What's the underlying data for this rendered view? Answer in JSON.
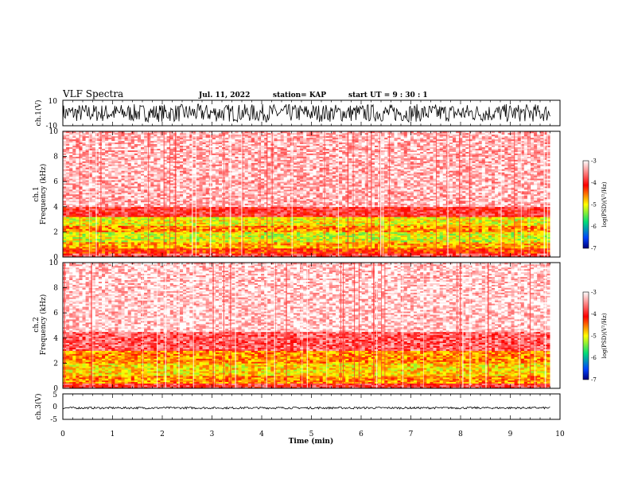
{
  "header": {
    "title": "VLF Spectra",
    "date": "Jul. 11, 2022",
    "station": "station= KAP",
    "start_ut": "start UT =  9 : 30 : 1"
  },
  "chart_data": [
    {
      "type": "line",
      "panel": "ch1-waveform",
      "ylabel": "ch.1(V)",
      "ylim": [
        -10,
        10
      ],
      "ytick_labels": [
        "10",
        "-10"
      ],
      "xlim": [
        0,
        10
      ],
      "description_level": {
        "center": 0,
        "amplitude": 7
      }
    },
    {
      "type": "heatmap",
      "panel": "ch1-spectrogram",
      "ylabel_top": "ch.1",
      "ylabel": "Frequency (kHz)",
      "ylim": [
        0,
        10
      ],
      "ytick_labels": [
        "0",
        "2",
        "4",
        "6",
        "8",
        "10"
      ],
      "xlim": [
        0,
        10
      ],
      "colorbar": {
        "label": "log(PSD)(V²/Hz)",
        "range": [
          -7,
          -3
        ],
        "tick_labels": [
          "-3",
          "-4",
          "-5",
          "-6",
          "-7"
        ],
        "colors": [
          "#00007a",
          "#0044ff",
          "#00dd77",
          "#ffff00",
          "#ff0000",
          "#ffffff"
        ]
      },
      "band_levels": [
        {
          "fmin": 0,
          "fmax": 0.3,
          "level": -3.8
        },
        {
          "fmin": 0.3,
          "fmax": 0.7,
          "level": -4.3
        },
        {
          "fmin": 0.7,
          "fmax": 1.2,
          "level": -4.7
        },
        {
          "fmin": 1.2,
          "fmax": 2.0,
          "level": -5.1
        },
        {
          "fmin": 2.0,
          "fmax": 2.5,
          "level": -4.6
        },
        {
          "fmin": 2.5,
          "fmax": 3.2,
          "level": -5.0
        },
        {
          "fmin": 3.2,
          "fmax": 4.0,
          "level": -3.9
        },
        {
          "fmin": 4.0,
          "fmax": 10.0,
          "level": -3.3
        }
      ]
    },
    {
      "type": "heatmap",
      "panel": "ch2-spectrogram",
      "ylabel_top": "ch.2",
      "ylabel": "Frequency (kHz)",
      "ylim": [
        0,
        10
      ],
      "ytick_labels": [
        "0",
        "2",
        "4",
        "6",
        "8",
        "10"
      ],
      "xlim": [
        0,
        10
      ],
      "colorbar": {
        "label": "log(PSD)(V²/Hz)",
        "range": [
          -7,
          -3
        ],
        "tick_labels": [
          "-3",
          "-4",
          "-5",
          "-6",
          "-7"
        ],
        "colors": [
          "#00007a",
          "#0044ff",
          "#00dd77",
          "#ffff00",
          "#ff0000",
          "#ffffff"
        ]
      },
      "band_levels": [
        {
          "fmin": 0,
          "fmax": 0.4,
          "level": -3.9
        },
        {
          "fmin": 0.4,
          "fmax": 1.0,
          "level": -4.6
        },
        {
          "fmin": 1.0,
          "fmax": 2.0,
          "level": -4.9
        },
        {
          "fmin": 2.0,
          "fmax": 3.0,
          "level": -4.6
        },
        {
          "fmin": 3.0,
          "fmax": 4.5,
          "level": -3.7
        },
        {
          "fmin": 4.5,
          "fmax": 10.0,
          "level": -3.2
        }
      ]
    },
    {
      "type": "line",
      "panel": "ch3-waveform",
      "ylabel": "ch.3(V)",
      "ylim": [
        -5,
        5
      ],
      "ytick_labels": [
        "5",
        "0",
        "-5"
      ],
      "xlim": [
        0,
        10
      ],
      "description_level": {
        "center": -0.5,
        "amplitude": 0.4
      }
    }
  ],
  "xaxis": {
    "label": "Time (min)",
    "tick_labels": [
      "0",
      "1",
      "2",
      "3",
      "4",
      "5",
      "6",
      "7",
      "8",
      "9",
      "10"
    ],
    "data_end": 9.8
  }
}
